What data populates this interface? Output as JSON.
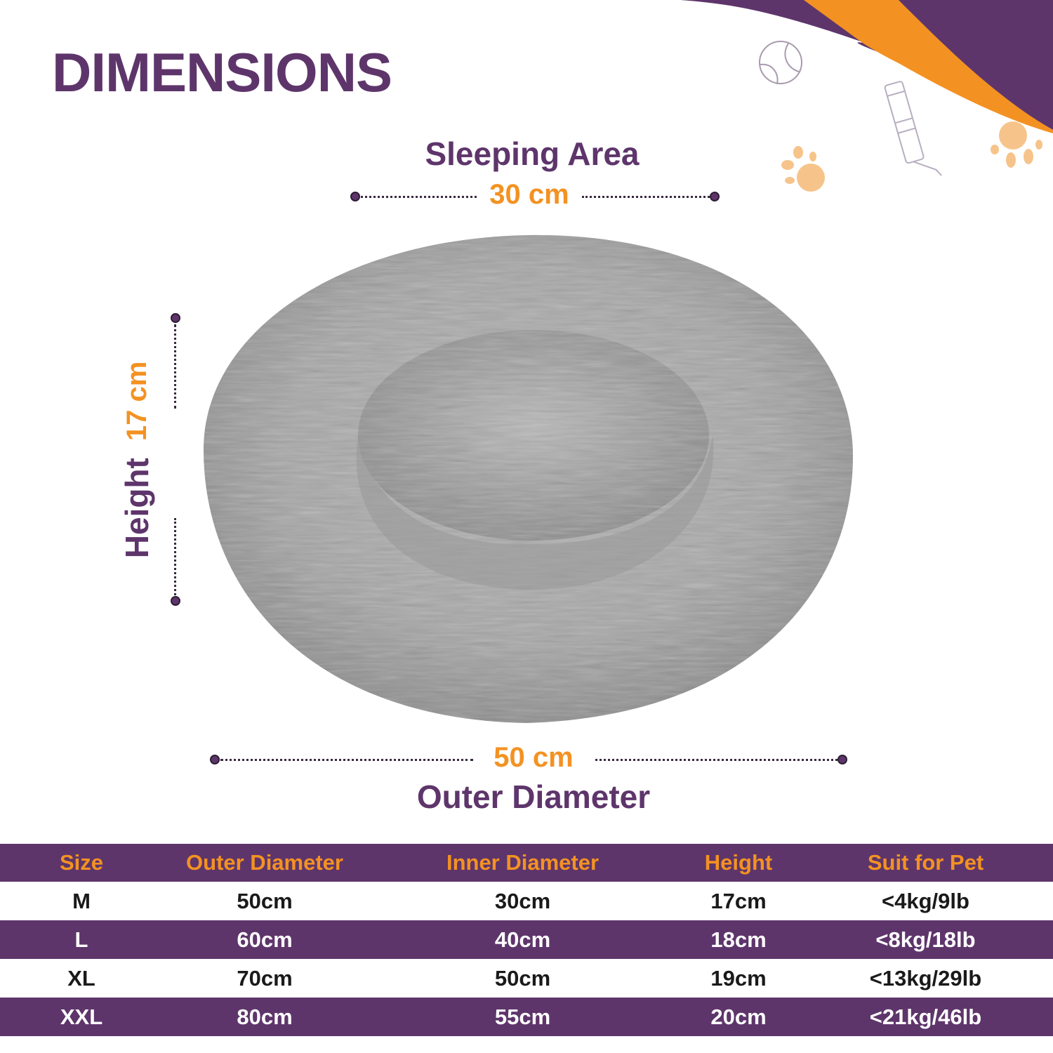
{
  "title": "DIMENSIONS",
  "sleeping_area": {
    "label": "Sleeping Area",
    "value": "30 cm"
  },
  "height": {
    "label": "Height",
    "value": "17 cm"
  },
  "outer_diameter": {
    "label": "Outer Diameter",
    "value": "50 cm"
  },
  "colors": {
    "purple": "#5e356b",
    "orange": "#f39222",
    "bed_gray": "#a8a8a8"
  },
  "decorations": [
    "tennis-ball-icon",
    "treat-tube-icon",
    "paw-print-icon",
    "paw-print-icon"
  ],
  "table": {
    "headers": [
      "Size",
      "Outer Diameter",
      "Inner Diameter",
      "Height",
      "Suit for Pet"
    ],
    "rows": [
      [
        "M",
        "50cm",
        "30cm",
        "17cm",
        "<4kg/9lb"
      ],
      [
        "L",
        "60cm",
        "40cm",
        "18cm",
        "<8kg/18lb"
      ],
      [
        "XL",
        "70cm",
        "50cm",
        "19cm",
        "<13kg/29lb"
      ],
      [
        "XXL",
        "80cm",
        "55cm",
        "20cm",
        "<21kg/46lb"
      ]
    ]
  }
}
